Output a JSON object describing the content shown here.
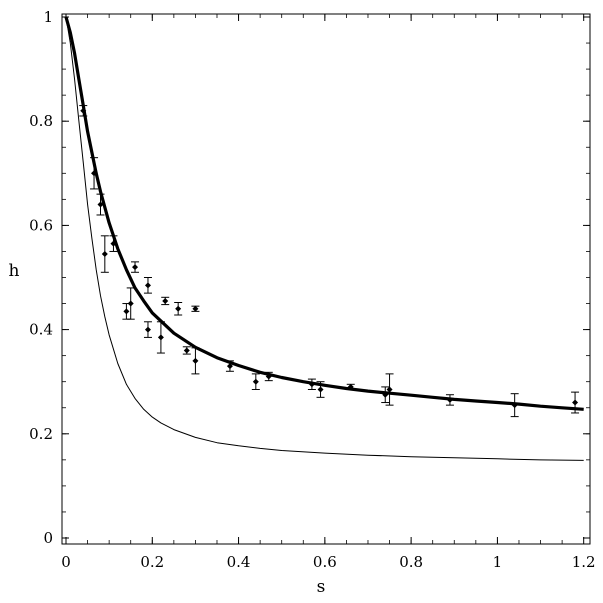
{
  "chart_data": {
    "type": "scatter",
    "title": "",
    "xlabel": "s",
    "ylabel": "h",
    "xlim": [
      0,
      1.21
    ],
    "ylim": [
      0,
      1.0
    ],
    "xticks": [
      0,
      0.2,
      0.4,
      0.6,
      0.8,
      1,
      1.2
    ],
    "xtick_labels": [
      "0",
      "0.2",
      "0.4",
      "0.6",
      "0.8",
      "1",
      "1.2"
    ],
    "yticks": [
      0,
      0.2,
      0.4,
      0.6,
      0.8,
      1
    ],
    "ytick_labels": [
      "0",
      "0.2",
      "0.4",
      "0.6",
      "0.8",
      "1"
    ],
    "grid": false,
    "series": [
      {
        "kind": "errorbar-points",
        "points": [
          {
            "x": 0.04,
            "y": 0.82,
            "err": 0.01
          },
          {
            "x": 0.065,
            "y": 0.7,
            "err": 0.03
          },
          {
            "x": 0.08,
            "y": 0.64,
            "err": 0.02
          },
          {
            "x": 0.09,
            "y": 0.545,
            "err": 0.035
          },
          {
            "x": 0.11,
            "y": 0.565,
            "err": 0.015
          },
          {
            "x": 0.14,
            "y": 0.435,
            "err": 0.015
          },
          {
            "x": 0.15,
            "y": 0.45,
            "err": 0.03
          },
          {
            "x": 0.16,
            "y": 0.52,
            "err": 0.01
          },
          {
            "x": 0.19,
            "y": 0.485,
            "err": 0.015
          },
          {
            "x": 0.19,
            "y": 0.4,
            "err": 0.015
          },
          {
            "x": 0.22,
            "y": 0.385,
            "err": 0.03
          },
          {
            "x": 0.23,
            "y": 0.455,
            "err": 0.007
          },
          {
            "x": 0.26,
            "y": 0.44,
            "err": 0.012
          },
          {
            "x": 0.28,
            "y": 0.36,
            "err": 0.007
          },
          {
            "x": 0.3,
            "y": 0.44,
            "err": 0.005
          },
          {
            "x": 0.3,
            "y": 0.34,
            "err": 0.025
          },
          {
            "x": 0.38,
            "y": 0.33,
            "err": 0.01
          },
          {
            "x": 0.44,
            "y": 0.3,
            "err": 0.015
          },
          {
            "x": 0.47,
            "y": 0.31,
            "err": 0.008
          },
          {
            "x": 0.57,
            "y": 0.295,
            "err": 0.01
          },
          {
            "x": 0.59,
            "y": 0.285,
            "err": 0.015
          },
          {
            "x": 0.66,
            "y": 0.29,
            "err": 0.005
          },
          {
            "x": 0.74,
            "y": 0.275,
            "err": 0.015
          },
          {
            "x": 0.75,
            "y": 0.285,
            "err": 0.03
          },
          {
            "x": 0.89,
            "y": 0.265,
            "err": 0.01
          },
          {
            "x": 1.04,
            "y": 0.255,
            "err": 0.022
          },
          {
            "x": 1.18,
            "y": 0.26,
            "err": 0.02
          }
        ]
      },
      {
        "kind": "thick-curve",
        "x": [
          0.0,
          0.01,
          0.02,
          0.03,
          0.04,
          0.05,
          0.06,
          0.07,
          0.08,
          0.09,
          0.1,
          0.12,
          0.14,
          0.16,
          0.18,
          0.2,
          0.25,
          0.3,
          0.35,
          0.4,
          0.45,
          0.5,
          0.55,
          0.6,
          0.65,
          0.7,
          0.75,
          0.8,
          0.85,
          0.9,
          0.95,
          1.0,
          1.05,
          1.1,
          1.15,
          1.2
        ],
        "y": [
          1.0,
          0.97,
          0.93,
          0.88,
          0.83,
          0.78,
          0.74,
          0.7,
          0.665,
          0.635,
          0.605,
          0.555,
          0.515,
          0.48,
          0.455,
          0.432,
          0.393,
          0.366,
          0.346,
          0.331,
          0.318,
          0.308,
          0.3,
          0.293,
          0.287,
          0.282,
          0.278,
          0.274,
          0.27,
          0.266,
          0.263,
          0.26,
          0.257,
          0.253,
          0.25,
          0.247
        ]
      },
      {
        "kind": "thin-curve",
        "x": [
          0.0,
          0.01,
          0.02,
          0.03,
          0.04,
          0.05,
          0.06,
          0.07,
          0.08,
          0.09,
          0.1,
          0.12,
          0.14,
          0.16,
          0.18,
          0.2,
          0.22,
          0.25,
          0.3,
          0.35,
          0.4,
          0.45,
          0.5,
          0.6,
          0.7,
          0.8,
          0.9,
          1.0,
          1.1,
          1.2
        ],
        "y": [
          1.0,
          0.95,
          0.88,
          0.8,
          0.72,
          0.64,
          0.575,
          0.515,
          0.465,
          0.425,
          0.39,
          0.335,
          0.295,
          0.268,
          0.247,
          0.232,
          0.221,
          0.208,
          0.193,
          0.183,
          0.177,
          0.172,
          0.168,
          0.163,
          0.159,
          0.156,
          0.154,
          0.152,
          0.15,
          0.149
        ]
      }
    ]
  }
}
